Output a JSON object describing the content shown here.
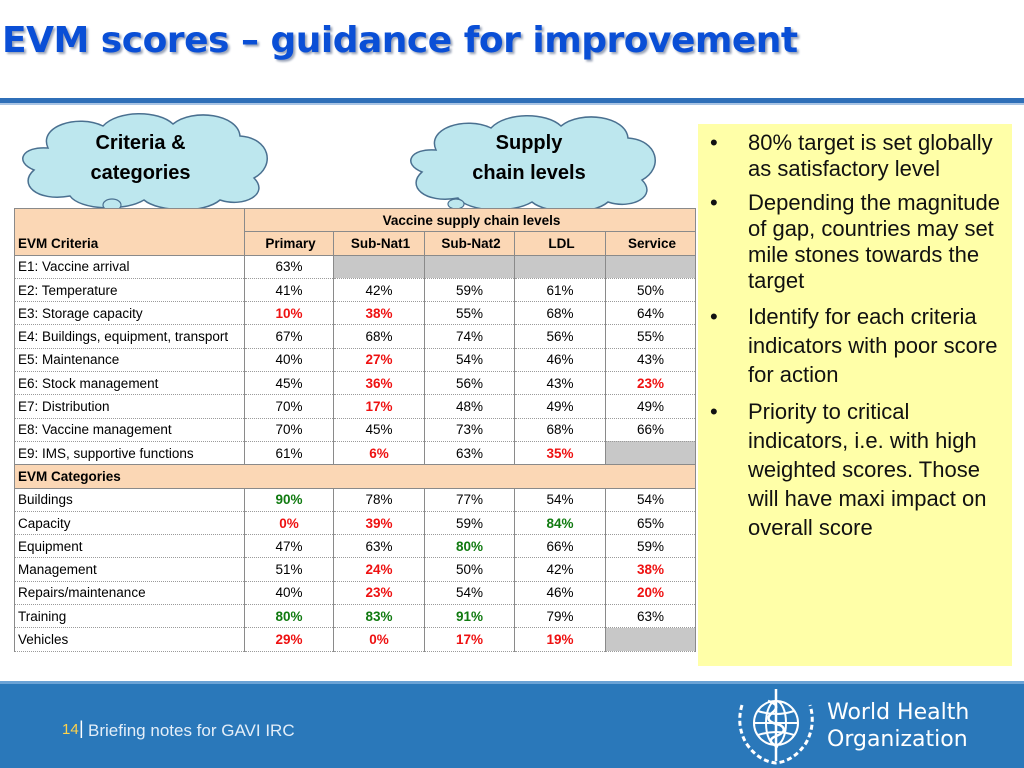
{
  "slide": {
    "title": "EVM scores – guidance for improvement",
    "callouts": [
      {
        "line1": "Criteria &",
        "line2": "categories"
      },
      {
        "line1": "Supply",
        "line2": "chain levels"
      }
    ]
  },
  "table": {
    "group_header": "Vaccine supply chain levels",
    "criteria_header": "EVM Criteria",
    "columns": [
      "Primary",
      "Sub-Nat1",
      "Sub-Nat2",
      "LDL",
      "Service"
    ],
    "criteria_rows": [
      {
        "label": "E1: Vaccine arrival",
        "values": [
          "63%",
          "",
          "",
          "",
          ""
        ],
        "styles": [
          "",
          "g",
          "g",
          "g",
          "g"
        ]
      },
      {
        "label": "E2: Temperature",
        "values": [
          "41%",
          "42%",
          "59%",
          "61%",
          "50%"
        ],
        "styles": [
          "",
          "",
          "",
          "",
          ""
        ]
      },
      {
        "label": "E3: Storage capacity",
        "values": [
          "10%",
          "38%",
          "55%",
          "68%",
          "64%"
        ],
        "styles": [
          "r",
          "r",
          "",
          "",
          ""
        ]
      },
      {
        "label": "E4: Buildings, equipment, transport",
        "values": [
          "67%",
          "68%",
          "74%",
          "56%",
          "55%"
        ],
        "styles": [
          "",
          "",
          "",
          "",
          ""
        ]
      },
      {
        "label": "E5: Maintenance",
        "values": [
          "40%",
          "27%",
          "54%",
          "46%",
          "43%"
        ],
        "styles": [
          "",
          "r",
          "",
          "",
          ""
        ]
      },
      {
        "label": "E6: Stock management",
        "values": [
          "45%",
          "36%",
          "56%",
          "43%",
          "23%"
        ],
        "styles": [
          "",
          "r",
          "",
          "",
          "r"
        ]
      },
      {
        "label": "E7: Distribution",
        "values": [
          "70%",
          "17%",
          "48%",
          "49%",
          "49%"
        ],
        "styles": [
          "",
          "r",
          "",
          "",
          ""
        ]
      },
      {
        "label": "E8: Vaccine management",
        "values": [
          "70%",
          "45%",
          "73%",
          "68%",
          "66%"
        ],
        "styles": [
          "",
          "",
          "",
          "",
          ""
        ]
      },
      {
        "label": "E9: IMS, supportive functions",
        "values": [
          "61%",
          "6%",
          "63%",
          "35%",
          ""
        ],
        "styles": [
          "",
          "r",
          "",
          "r",
          "g"
        ]
      }
    ],
    "categories_header": "EVM Categories",
    "category_rows": [
      {
        "label": "Buildings",
        "values": [
          "90%",
          "78%",
          "77%",
          "54%",
          "54%"
        ],
        "styles": [
          "gr",
          "",
          "",
          "",
          ""
        ]
      },
      {
        "label": "Capacity",
        "values": [
          "0%",
          "39%",
          "59%",
          "84%",
          "65%"
        ],
        "styles": [
          "r",
          "r",
          "",
          "gr",
          ""
        ]
      },
      {
        "label": "Equipment",
        "values": [
          "47%",
          "63%",
          "80%",
          "66%",
          "59%"
        ],
        "styles": [
          "",
          "",
          "gr",
          "",
          ""
        ]
      },
      {
        "label": "Management",
        "values": [
          "51%",
          "24%",
          "50%",
          "42%",
          "38%"
        ],
        "styles": [
          "",
          "r",
          "",
          "",
          "r"
        ]
      },
      {
        "label": "Repairs/maintenance",
        "values": [
          "40%",
          "23%",
          "54%",
          "46%",
          "20%"
        ],
        "styles": [
          "",
          "r",
          "",
          "",
          "r"
        ]
      },
      {
        "label": "Training",
        "values": [
          "80%",
          "83%",
          "91%",
          "79%",
          "63%"
        ],
        "styles": [
          "gr",
          "gr",
          "gr",
          "",
          ""
        ]
      },
      {
        "label": "Vehicles",
        "values": [
          "29%",
          "0%",
          "17%",
          "19%",
          ""
        ],
        "styles": [
          "r",
          "r",
          "r",
          "r",
          "g"
        ]
      }
    ]
  },
  "bullets": [
    "80% target is set globally as satisfactory level",
    "Depending the magnitude of gap, countries may set mile stones towards the target",
    "Identify for each criteria indicators with poor score for action",
    "Priority to critical indicators, i.e. with high weighted scores. Those will have maxi impact on overall score"
  ],
  "footer": {
    "page_number": "14",
    "separator": "|",
    "text": "Briefing notes for GAVI IRC",
    "org_line1": "World Health",
    "org_line2": "Organization"
  },
  "colors": {
    "title": "#0a4fd6",
    "header_fill": "#fbd7b5",
    "low_score": "#ee1111",
    "high_score": "#107a10",
    "bullet_box": "#ffffa8",
    "footer": "#2a78ba"
  },
  "icons": [
    "cloud-callout-icon",
    "who-emblem-icon"
  ]
}
